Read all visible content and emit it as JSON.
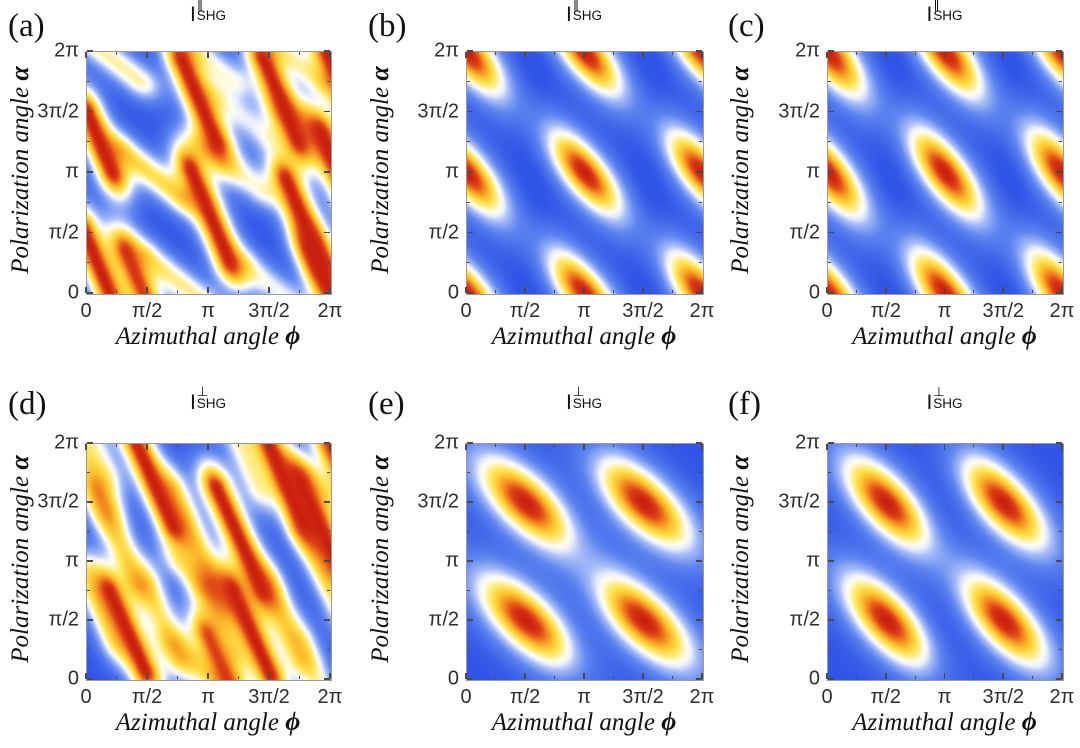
{
  "figure": {
    "background": "#ffffff",
    "description": "Polarization-resolved SHG intensity maps"
  },
  "axes": {
    "x_label_text": "Azimuthal angle ",
    "x_label_symbol": "ϕ",
    "y_label_text": "Polarization angle ",
    "y_label_symbol": "α",
    "x_ticks": [
      "0",
      "π/2",
      "π",
      "3π/2",
      "2π"
    ],
    "y_ticks": [
      "0",
      "π/2",
      "π",
      "3π/2",
      "2π"
    ]
  },
  "colormap": {
    "name": "blue-white-yellow-red",
    "stops": [
      {
        "t": 0.0,
        "c": "#2449e4"
      },
      {
        "t": 0.28,
        "c": "#5e85f0"
      },
      {
        "t": 0.42,
        "c": "#a6bcf7"
      },
      {
        "t": 0.5,
        "c": "#e8edfc"
      },
      {
        "t": 0.56,
        "c": "#fffef2"
      },
      {
        "t": 0.63,
        "c": "#fdf0a0"
      },
      {
        "t": 0.7,
        "c": "#fee34e"
      },
      {
        "t": 0.79,
        "c": "#fcbe2e"
      },
      {
        "t": 0.87,
        "c": "#f2851f"
      },
      {
        "t": 0.94,
        "c": "#dd3f17"
      },
      {
        "t": 1.0,
        "c": "#c9200f"
      }
    ]
  },
  "panels": [
    {
      "id": "a",
      "label": "(a)",
      "title": {
        "base": "I",
        "sup": "∥",
        "sub": "SHG"
      }
    },
    {
      "id": "b",
      "label": "(b)",
      "title": {
        "base": "I",
        "sup": "∥",
        "sub": "SHG"
      }
    },
    {
      "id": "c",
      "label": "(c)",
      "title": {
        "base": "I",
        "sup": "∥",
        "sub": "SHG"
      }
    },
    {
      "id": "d",
      "label": "(d)",
      "title": {
        "base": "I",
        "sup": "⊥",
        "sub": "SHG"
      }
    },
    {
      "id": "e",
      "label": "(e)",
      "title": {
        "base": "I",
        "sup": "⊥",
        "sub": "SHG"
      }
    },
    {
      "id": "f",
      "label": "(f)",
      "title": {
        "base": "I",
        "sup": "⊥",
        "sub": "SHG"
      }
    }
  ],
  "chart_data": [
    {
      "panel": "a",
      "type": "heatmap",
      "quantity": "I_SHG_parallel",
      "x_axis": "Azimuthal angle phi (0 to 2pi)",
      "y_axis": "Polarization angle alpha (0 to 2pi)",
      "x_range_pi": [
        0,
        2
      ],
      "y_range_pi": [
        0,
        2
      ],
      "value_range": [
        0,
        1
      ],
      "pattern": "herringbone of long steep negative-slope intensity stripes, estimated from pixels",
      "background_level": 0.06,
      "ridges": [
        {
          "x": 0.1,
          "y": 1.26,
          "s": -2.4,
          "L": 0.26,
          "c": 0.2,
          "w": 0.105,
          "a": 1.0
        },
        {
          "x": 0.92,
          "y": 1.6,
          "s": -2.4,
          "L": 0.36,
          "c": 0.2,
          "w": 0.105,
          "a": 1.0
        },
        {
          "x": 1.59,
          "y": 1.61,
          "s": -2.4,
          "L": 0.36,
          "c": 0.2,
          "w": 0.105,
          "a": 1.0
        },
        {
          "x": 1.01,
          "y": 0.65,
          "s": -2.4,
          "L": 0.4,
          "c": 0.2,
          "w": 0.105,
          "a": 1.0
        },
        {
          "x": 1.78,
          "y": 0.6,
          "s": -2.4,
          "L": 0.36,
          "c": 0.2,
          "w": 0.105,
          "a": 1.0
        },
        {
          "x": 0.07,
          "y": 0.28,
          "s": -2.4,
          "L": 0.26,
          "c": 0.2,
          "w": 0.105,
          "a": 1.0
        },
        {
          "x": 0.42,
          "y": 0.1,
          "s": -2.4,
          "L": 0.26,
          "c": 0.2,
          "w": 0.105,
          "a": 0.95
        },
        {
          "x": 1.95,
          "y": 0.12,
          "s": -2.4,
          "L": 0.26,
          "c": 0.2,
          "w": 0.105,
          "a": 1.0
        },
        {
          "x": 2.08,
          "y": 0.95,
          "s": -2.4,
          "L": 0.4,
          "c": 0.2,
          "w": 0.105,
          "a": 1.0
        },
        {
          "x": 2.02,
          "y": 1.88,
          "s": -2.4,
          "L": 0.3,
          "c": 0.2,
          "w": 0.105,
          "a": 1.0
        },
        {
          "x": 0.53,
          "y": 0.99,
          "s": -0.8,
          "L": 0.3,
          "c": 0.16,
          "w": 0.1,
          "a": 0.68
        },
        {
          "x": 1.2,
          "y": 1.04,
          "s": -0.8,
          "L": 0.28,
          "c": 0.16,
          "w": 0.1,
          "a": 0.52
        },
        {
          "x": 1.85,
          "y": 1.35,
          "s": -0.8,
          "L": 0.26,
          "c": 0.16,
          "w": 0.1,
          "a": 0.5
        },
        {
          "x": 1.27,
          "y": 1.47,
          "s": -0.8,
          "L": 0.22,
          "c": 0.16,
          "w": 0.1,
          "a": 0.45
        },
        {
          "x": 0.72,
          "y": 0.12,
          "s": -0.8,
          "L": 0.28,
          "c": 0.16,
          "w": 0.1,
          "a": 0.62
        },
        {
          "x": 1.52,
          "y": 0.06,
          "s": -0.8,
          "L": 0.24,
          "c": 0.16,
          "w": 0.1,
          "a": 0.5
        },
        {
          "x": 0.22,
          "y": 1.93,
          "s": -0.8,
          "L": 0.26,
          "c": 0.16,
          "w": 0.1,
          "a": 0.6
        },
        {
          "x": 1.0,
          "y": 1.93,
          "s": -0.8,
          "L": 0.24,
          "c": 0.16,
          "w": 0.1,
          "a": 0.5
        },
        {
          "x": 1.72,
          "y": 1.92,
          "s": -0.8,
          "L": 0.24,
          "c": 0.16,
          "w": 0.1,
          "a": 0.55
        }
      ]
    },
    {
      "panel": "b",
      "type": "heatmap",
      "quantity": "I_SHG_parallel",
      "x_axis": "Azimuthal angle phi (0 to 2pi)",
      "y_axis": "Polarization angle alpha (0 to 2pi)",
      "x_range_pi": [
        0,
        2
      ],
      "y_range_pi": [
        0,
        2
      ],
      "value_range": [
        0,
        1
      ],
      "pattern": "tilted elliptical maxima at every integer multiple of pi in both angles",
      "background_level": 0.06,
      "blobs": {
        "centers_pi": [
          [
            0,
            0
          ],
          [
            1,
            0
          ],
          [
            2,
            0
          ],
          [
            0,
            1
          ],
          [
            1,
            1
          ],
          [
            2,
            1
          ],
          [
            0,
            2
          ],
          [
            1,
            2
          ],
          [
            2,
            2
          ]
        ],
        "slope": -1.2,
        "sigma_major_pi": 0.36,
        "sigma_minor_pi": 0.14,
        "amp": 1.0
      },
      "dark_channels": [
        {
          "x": 0.55,
          "amp": 0.06,
          "sigma": 0.13
        },
        {
          "x": 1.55,
          "amp": 0.06,
          "sigma": 0.13
        }
      ]
    },
    {
      "panel": "c",
      "type": "heatmap",
      "quantity": "I_SHG_parallel",
      "x_axis": "Azimuthal angle phi (0 to 2pi)",
      "y_axis": "Polarization angle alpha (0 to 2pi)",
      "x_range_pi": [
        0,
        2
      ],
      "y_range_pi": [
        0,
        2
      ],
      "value_range": [
        0,
        1
      ],
      "pattern": "tilted elliptical maxima at every integer multiple of pi in both angles",
      "background_level": 0.06,
      "blobs": {
        "centers_pi": [
          [
            0,
            0
          ],
          [
            1,
            0
          ],
          [
            2,
            0
          ],
          [
            0,
            1
          ],
          [
            1,
            1
          ],
          [
            2,
            1
          ],
          [
            0,
            2
          ],
          [
            1,
            2
          ],
          [
            2,
            2
          ]
        ],
        "slope": -1.28,
        "sigma_major_pi": 0.375,
        "sigma_minor_pi": 0.145,
        "amp": 1.0
      },
      "dark_channels": [
        {
          "x": 0.55,
          "amp": 0.06,
          "sigma": 0.13
        },
        {
          "x": 1.55,
          "amp": 0.06,
          "sigma": 0.13
        }
      ]
    },
    {
      "panel": "d",
      "type": "heatmap",
      "quantity": "I_SHG_perpendicular",
      "x_axis": "Azimuthal angle phi (0 to 2pi)",
      "y_axis": "Polarization angle alpha (0 to 2pi)",
      "x_range_pi": [
        0,
        2
      ],
      "y_range_pi": [
        0,
        2
      ],
      "value_range": [
        0,
        1
      ],
      "pattern": "herringbone of long steep negative-slope stripes with parallel yellow rails, estimated from pixels",
      "background_level": 0.06,
      "ridges": [
        {
          "x": 0.55,
          "y": 1.67,
          "s": -2.3,
          "L": 0.38,
          "c": 0.2,
          "w": 0.105,
          "a": 1.0
        },
        {
          "x": 1.63,
          "y": 1.68,
          "s": -2.3,
          "L": 0.36,
          "c": 0.2,
          "w": 0.105,
          "a": 1.0
        },
        {
          "x": 1.9,
          "y": 1.33,
          "s": -2.3,
          "L": 0.38,
          "c": 0.2,
          "w": 0.105,
          "a": 1.0
        },
        {
          "x": 1.25,
          "y": 1.2,
          "s": -2.3,
          "L": 0.46,
          "c": 0.2,
          "w": 0.105,
          "a": 1.0
        },
        {
          "x": 0.33,
          "y": 0.41,
          "s": -2.3,
          "L": 0.36,
          "c": 0.2,
          "w": 0.105,
          "a": 1.0
        },
        {
          "x": 1.35,
          "y": 0.4,
          "s": -2.3,
          "L": 0.38,
          "c": 0.2,
          "w": 0.105,
          "a": 1.0
        },
        {
          "x": 1.08,
          "y": 0.17,
          "s": -2.3,
          "L": 0.22,
          "c": 0.2,
          "w": 0.105,
          "a": 0.92
        },
        {
          "x": 2.0,
          "y": 1.97,
          "s": -2.3,
          "L": 0.24,
          "c": 0.2,
          "w": 0.105,
          "a": 0.95
        },
        {
          "x": 0.25,
          "y": 1.2,
          "s": -2.4,
          "L": 0.4,
          "c": 0.18,
          "w": 0.1,
          "a": 0.66
        },
        {
          "x": 0.86,
          "y": 1.23,
          "s": -2.4,
          "L": 0.4,
          "c": 0.18,
          "w": 0.1,
          "a": 0.64
        },
        {
          "x": 1.95,
          "y": 0.9,
          "s": -2.4,
          "L": 0.36,
          "c": 0.18,
          "w": 0.1,
          "a": 0.6
        },
        {
          "x": 0.1,
          "y": 0.62,
          "s": -2.4,
          "L": 0.3,
          "c": 0.18,
          "w": 0.1,
          "a": 0.56
        },
        {
          "x": 0.62,
          "y": 0.5,
          "s": -2.4,
          "L": 0.32,
          "c": 0.18,
          "w": 0.1,
          "a": 0.6
        },
        {
          "x": 1.1,
          "y": 0.5,
          "s": -2.4,
          "L": 0.28,
          "c": 0.18,
          "w": 0.1,
          "a": 0.5
        },
        {
          "x": 1.62,
          "y": 0.5,
          "s": -2.4,
          "L": 0.32,
          "c": 0.18,
          "w": 0.1,
          "a": 0.6
        },
        {
          "x": 1.3,
          "y": 1.9,
          "s": -2.4,
          "L": 0.28,
          "c": 0.18,
          "w": 0.1,
          "a": 0.55
        },
        {
          "x": 0.04,
          "y": 1.7,
          "s": -2.4,
          "L": 0.26,
          "c": 0.18,
          "w": 0.1,
          "a": 0.55
        },
        {
          "x": 1.85,
          "y": 0.1,
          "s": -2.4,
          "L": 0.22,
          "c": 0.18,
          "w": 0.1,
          "a": 0.5
        },
        {
          "x": 0.08,
          "y": 1.95,
          "s": -2.4,
          "L": 0.2,
          "c": 0.18,
          "w": 0.1,
          "a": 0.45
        },
        {
          "x": 0.93,
          "y": 0.83,
          "s": -1.0,
          "L": 0.22,
          "c": 0.16,
          "w": 0.1,
          "a": 0.5
        },
        {
          "x": 0.9,
          "y": 0.12,
          "s": -1.0,
          "L": 0.22,
          "c": 0.16,
          "w": 0.1,
          "a": 0.55
        },
        {
          "x": 1.98,
          "y": 1.55,
          "s": -1.0,
          "L": 0.2,
          "c": 0.16,
          "w": 0.1,
          "a": 0.5
        }
      ]
    },
    {
      "panel": "e",
      "type": "heatmap",
      "quantity": "I_SHG_perpendicular",
      "x_axis": "Azimuthal angle phi (0 to 2pi)",
      "y_axis": "Polarization angle alpha (0 to 2pi)",
      "x_range_pi": [
        0,
        2
      ],
      "y_range_pi": [
        0,
        2
      ],
      "value_range": [
        0,
        1
      ],
      "pattern": "four large tilted elliptical maxima at odd multiples of pi/2",
      "background_level": 0.06,
      "blobs": {
        "centers_pi": [
          [
            0.5,
            0.5
          ],
          [
            0.5,
            1.5
          ],
          [
            1.5,
            0.5
          ],
          [
            1.5,
            1.5
          ]
        ],
        "slope": -0.95,
        "sigma_major_pi": 0.42,
        "sigma_minor_pi": 0.18,
        "amp": 1.0
      },
      "dark_channels": [
        {
          "x": 1.0,
          "amp": 0.06,
          "sigma": 0.15
        }
      ]
    },
    {
      "panel": "f",
      "type": "heatmap",
      "quantity": "I_SHG_perpendicular",
      "x_axis": "Azimuthal angle phi (0 to 2pi)",
      "y_axis": "Polarization angle alpha (0 to 2pi)",
      "x_range_pi": [
        0,
        2
      ],
      "y_range_pi": [
        0,
        2
      ],
      "value_range": [
        0,
        1
      ],
      "pattern": "four large tilted elliptical maxima at odd multiples of pi/2",
      "background_level": 0.06,
      "blobs": {
        "centers_pi": [
          [
            0.5,
            0.5
          ],
          [
            0.5,
            1.5
          ],
          [
            1.5,
            0.5
          ],
          [
            1.5,
            1.5
          ]
        ],
        "slope": -1.1,
        "sigma_major_pi": 0.4,
        "sigma_minor_pi": 0.17,
        "amp": 1.0
      },
      "dark_channels": [
        {
          "x": 1.0,
          "amp": 0.06,
          "sigma": 0.15
        }
      ]
    }
  ]
}
